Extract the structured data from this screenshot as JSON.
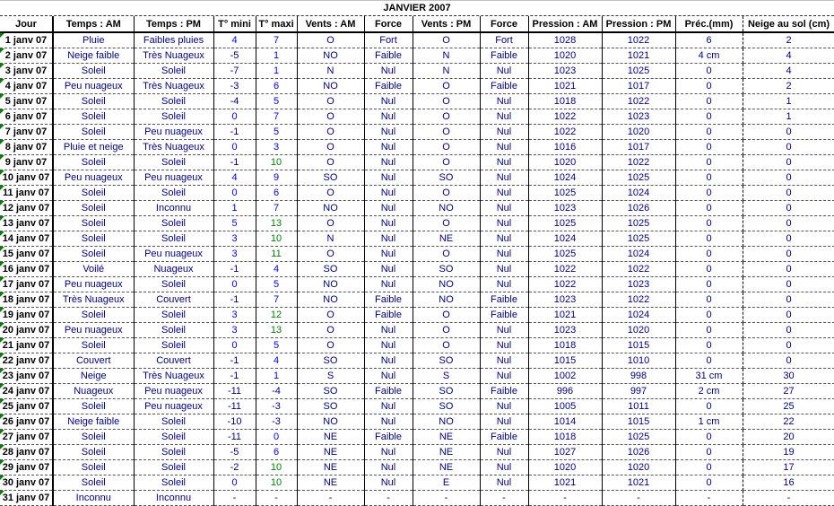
{
  "title": "JANVIER 2007",
  "colors": {
    "text": "#000080",
    "positive": "#0000ff",
    "warm": "#008000",
    "marker": "#008000"
  },
  "headers": [
    "Jour",
    "Temps : AM",
    "Temps : PM",
    "T° mini",
    "T° maxi",
    "Vents : AM",
    "Force",
    "Vents : PM",
    "Force",
    "Pression : AM",
    "Pression : PM",
    "Préc.(mm)",
    "Neige au sol (cm)"
  ],
  "rows": [
    [
      "1 janv 07",
      "Pluie",
      "Faibles pluies",
      "4",
      "7",
      "O",
      "Fort",
      "O",
      "Fort",
      "1028",
      "1022",
      "6",
      "2"
    ],
    [
      "2 janv 07",
      "Neige faible",
      "Très Nuageux",
      "-5",
      "1",
      "NO",
      "Faible",
      "N",
      "Faible",
      "1020",
      "1021",
      "4 cm",
      "4"
    ],
    [
      "3 janv 07",
      "Soleil",
      "Soleil",
      "-7",
      "1",
      "N",
      "Nul",
      "N",
      "Nul",
      "1023",
      "1025",
      "0",
      "4"
    ],
    [
      "4 janv 07",
      "Peu nuageux",
      "Très Nuageux",
      "-3",
      "6",
      "NO",
      "Faible",
      "O",
      "Faible",
      "1021",
      "1017",
      "0",
      "2"
    ],
    [
      "5 janv 07",
      "Soleil",
      "Soleil",
      "-4",
      "5",
      "O",
      "Nul",
      "O",
      "Nul",
      "1018",
      "1022",
      "0",
      "1"
    ],
    [
      "6 janv 07",
      "Soleil",
      "Soleil",
      "0",
      "7",
      "O",
      "Nul",
      "O",
      "Nul",
      "1022",
      "1023",
      "0",
      "1"
    ],
    [
      "7 janv 07",
      "Soleil",
      "Peu nuageux",
      "-1",
      "5",
      "O",
      "Nul",
      "O",
      "Nul",
      "1022",
      "1020",
      "0",
      "0"
    ],
    [
      "8 janv 07",
      "Pluie et neige",
      "Très Nuageux",
      "0",
      "3",
      "O",
      "Nul",
      "O",
      "Nul",
      "1016",
      "1017",
      "0",
      "0"
    ],
    [
      "9 janv 07",
      "Soleil",
      "Soleil",
      "-1",
      "10",
      "O",
      "Nul",
      "O",
      "Nul",
      "1020",
      "1022",
      "0",
      "0"
    ],
    [
      "10 janv 07",
      "Peu nuageux",
      "Peu nuageux",
      "4",
      "9",
      "SO",
      "Nul",
      "SO",
      "Nul",
      "1024",
      "1025",
      "0",
      "0"
    ],
    [
      "11 janv 07",
      "Soleil",
      "Soleil",
      "0",
      "6",
      "O",
      "Nul",
      "O",
      "Nul",
      "1025",
      "1024",
      "0",
      "0"
    ],
    [
      "12 janv 07",
      "Soleil",
      "Inconnu",
      "1",
      "7",
      "NO",
      "Nul",
      "NO",
      "Nul",
      "1023",
      "1026",
      "0",
      "0"
    ],
    [
      "13 janv 07",
      "Soleil",
      "Soleil",
      "5",
      "13",
      "O",
      "Nul",
      "O",
      "Nul",
      "1025",
      "1025",
      "0",
      "0"
    ],
    [
      "14 janv 07",
      "Soleil",
      "Soleil",
      "3",
      "10",
      "N",
      "Nul",
      "NE",
      "Nul",
      "1024",
      "1025",
      "0",
      "0"
    ],
    [
      "15 janv 07",
      "Soleil",
      "Peu nuageux",
      "3",
      "11",
      "O",
      "Nul",
      "O",
      "Nul",
      "1025",
      "1024",
      "0",
      "0"
    ],
    [
      "16 janv 07",
      "Voilé",
      "Nuageux",
      "-1",
      "4",
      "SO",
      "Nul",
      "SO",
      "Nul",
      "1022",
      "1022",
      "0",
      "0"
    ],
    [
      "17 janv 07",
      "Peu nuageux",
      "Soleil",
      "0",
      "5",
      "NO",
      "Nul",
      "NO",
      "Nul",
      "1022",
      "1023",
      "0",
      "0"
    ],
    [
      "18 janv 07",
      "Très Nuageux",
      "Couvert",
      "-1",
      "7",
      "NO",
      "Faible",
      "NO",
      "Faible",
      "1023",
      "1022",
      "0",
      "0"
    ],
    [
      "19 janv 07",
      "Soleil",
      "Soleil",
      "3",
      "12",
      "O",
      "Faible",
      "O",
      "Faible",
      "1021",
      "1024",
      "0",
      "0"
    ],
    [
      "20 janv 07",
      "Peu nuageux",
      "Soleil",
      "3",
      "13",
      "O",
      "Nul",
      "O",
      "Nul",
      "1023",
      "1020",
      "0",
      "0"
    ],
    [
      "21 janv 07",
      "Soleil",
      "Soleil",
      "0",
      "5",
      "O",
      "Nul",
      "O",
      "Nul",
      "1018",
      "1015",
      "0",
      "0"
    ],
    [
      "22 janv 07",
      "Couvert",
      "Couvert",
      "-1",
      "4",
      "SO",
      "Nul",
      "SO",
      "Nul",
      "1015",
      "1010",
      "0",
      "0"
    ],
    [
      "23 janv 07",
      "Neige",
      "Très Nuageux",
      "-1",
      "1",
      "S",
      "Nul",
      "S",
      "Nul",
      "1002",
      "998",
      "31 cm",
      "30"
    ],
    [
      "24 janv 07",
      "Nuageux",
      "Peu nuageux",
      "-11",
      "-4",
      "SO",
      "Faible",
      "SO",
      "Faible",
      "996",
      "997",
      "2 cm",
      "27"
    ],
    [
      "25 janv 07",
      "Soleil",
      "Peu nuageux",
      "-11",
      "-3",
      "SO",
      "Nul",
      "SO",
      "Nul",
      "1005",
      "1011",
      "0",
      "25"
    ],
    [
      "26 janv 07",
      "Neige faible",
      "Soleil",
      "-10",
      "-3",
      "NO",
      "Nul",
      "NO",
      "Nul",
      "1014",
      "1015",
      "1 cm",
      "22"
    ],
    [
      "27 janv 07",
      "Soleil",
      "Soleil",
      "-11",
      "0",
      "NE",
      "Faible",
      "NE",
      "Faible",
      "1018",
      "1025",
      "0",
      "20"
    ],
    [
      "28 janv 07",
      "Soleil",
      "Soleil",
      "-5",
      "6",
      "NE",
      "Nul",
      "NE",
      "Nul",
      "1027",
      "1026",
      "0",
      "19"
    ],
    [
      "29 janv 07",
      "Soleil",
      "Soleil",
      "-2",
      "10",
      "NE",
      "Nul",
      "NE",
      "Nul",
      "1020",
      "1020",
      "0",
      "17"
    ],
    [
      "30 janv 07",
      "Soleil",
      "Soleil",
      "0",
      "10",
      "NE",
      "Nul",
      "E",
      "Nul",
      "1021",
      "1021",
      "0",
      "16"
    ],
    [
      "31 janv 07",
      "Inconnu",
      "Inconnu",
      "-",
      "-",
      "-",
      "-",
      "-",
      "-",
      "-",
      "-",
      "-",
      "-"
    ]
  ]
}
